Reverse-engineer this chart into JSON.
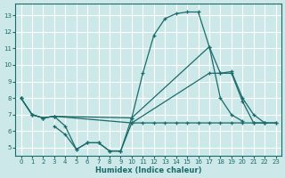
{
  "xlabel": "Humidex (Indice chaleur)",
  "xlim": [
    -0.5,
    23.5
  ],
  "ylim": [
    4.5,
    13.7
  ],
  "yticks": [
    5,
    6,
    7,
    8,
    9,
    10,
    11,
    12,
    13
  ],
  "xticks": [
    0,
    1,
    2,
    3,
    4,
    5,
    6,
    7,
    8,
    9,
    10,
    11,
    12,
    13,
    14,
    15,
    16,
    17,
    18,
    19,
    20,
    21,
    22,
    23
  ],
  "background_color": "#cde8e8",
  "line_color": "#1a6b6b",
  "grid_color": "#ffffff",
  "curve1_x": [
    0,
    1,
    2,
    3,
    4,
    5,
    6,
    7,
    8,
    9,
    10,
    11,
    12,
    13,
    14,
    15,
    16,
    17,
    18,
    19,
    20
  ],
  "curve1_y": [
    8.0,
    7.0,
    6.8,
    6.9,
    6.3,
    4.9,
    5.3,
    5.3,
    4.8,
    4.8,
    6.8,
    9.5,
    11.8,
    12.8,
    13.1,
    13.2,
    13.2,
    11.1,
    8.0,
    7.0,
    6.6
  ],
  "curve2_x": [
    0,
    1,
    2,
    3,
    10,
    17,
    18,
    19,
    20,
    21,
    22
  ],
  "curve2_y": [
    8.0,
    7.0,
    6.8,
    6.9,
    6.8,
    11.1,
    9.5,
    9.6,
    8.0,
    7.0,
    6.5
  ],
  "curve3_x": [
    0,
    1,
    2,
    3,
    10,
    17,
    18,
    19,
    20,
    21,
    22,
    23
  ],
  "curve3_y": [
    8.0,
    7.0,
    6.8,
    6.9,
    6.5,
    9.5,
    9.5,
    9.5,
    7.8,
    6.5,
    6.5,
    6.5
  ],
  "curve4_x": [
    3,
    4,
    5,
    6,
    7,
    8,
    9,
    10,
    11,
    12,
    13,
    14,
    15,
    16,
    17,
    18,
    19,
    20,
    21,
    22,
    23
  ],
  "curve4_y": [
    6.3,
    5.8,
    4.9,
    5.3,
    5.3,
    4.8,
    4.8,
    6.5,
    6.5,
    6.5,
    6.5,
    6.5,
    6.5,
    6.5,
    6.5,
    6.5,
    6.5,
    6.5,
    6.5,
    6.5,
    6.5
  ]
}
